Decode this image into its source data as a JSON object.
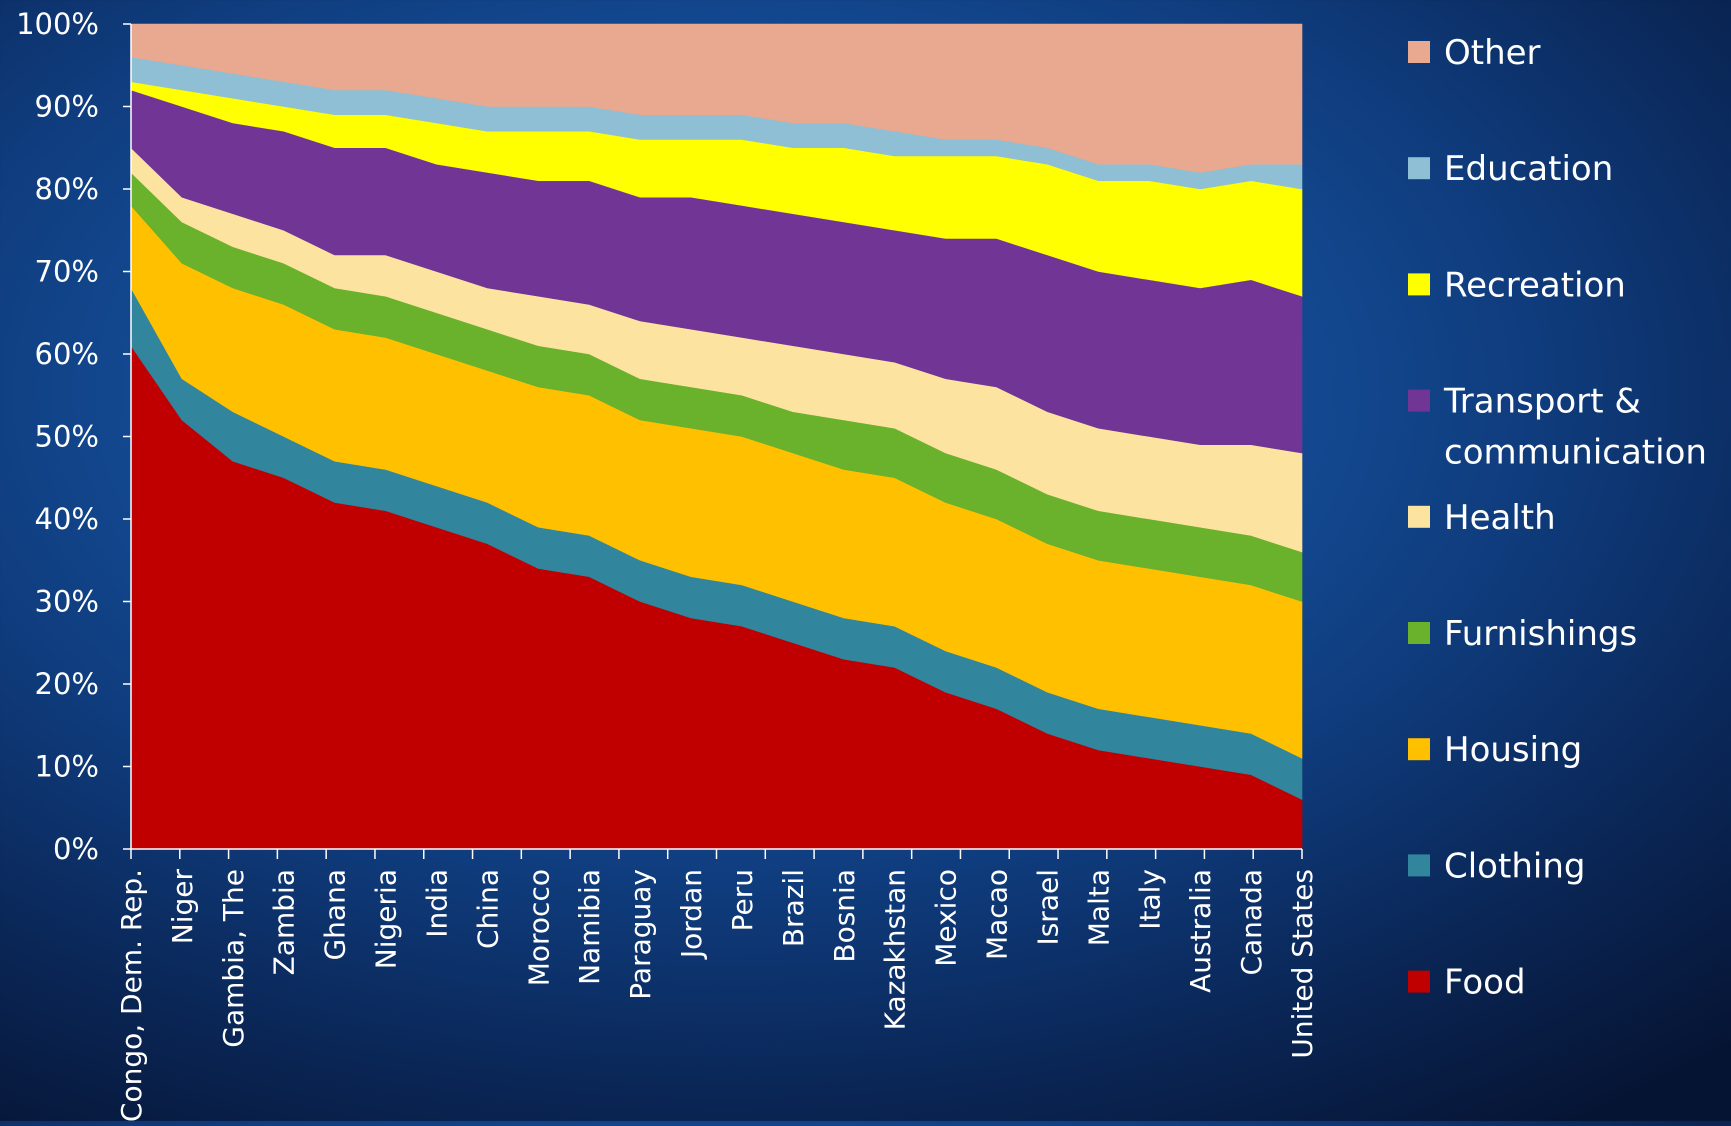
{
  "chart_data": {
    "type": "area",
    "stacked": true,
    "percent": true,
    "title": "",
    "xlabel": "",
    "ylabel": "",
    "ylim": [
      0,
      100
    ],
    "yticks": [
      "0%",
      "10%",
      "20%",
      "30%",
      "40%",
      "50%",
      "60%",
      "70%",
      "80%",
      "90%",
      "100%"
    ],
    "categories": [
      "Congo, Dem. Rep.",
      "Niger",
      "Gambia, The",
      "Zambia",
      "Ghana",
      "Nigeria",
      "India",
      "China",
      "Morocco",
      "Namibia",
      "Paraguay",
      "Jordan",
      "Peru",
      "Brazil",
      "Bosnia",
      "Kazakhstan",
      "Mexico",
      "Macao",
      "Israel",
      "Malta",
      "Italy",
      "Australia",
      "Canada",
      "United States"
    ],
    "series": [
      {
        "name": "Food",
        "color": "#C00000",
        "values": [
          61,
          52,
          47,
          45,
          42,
          41,
          39,
          37,
          34,
          33,
          30,
          28,
          27,
          25,
          23,
          22,
          19,
          17,
          14,
          12,
          11,
          10,
          9,
          6
        ]
      },
      {
        "name": "Clothing",
        "color": "#31859C",
        "values": [
          7,
          5,
          6,
          5,
          5,
          5,
          5,
          5,
          5,
          5,
          5,
          5,
          5,
          5,
          5,
          5,
          5,
          5,
          5,
          5,
          5,
          5,
          5,
          5
        ]
      },
      {
        "name": "Housing",
        "color": "#FFC000",
        "values": [
          10,
          14,
          15,
          16,
          16,
          16,
          16,
          16,
          17,
          17,
          17,
          18,
          18,
          18,
          18,
          18,
          18,
          18,
          18,
          18,
          18,
          18,
          18,
          19
        ]
      },
      {
        "name": "Furnishings",
        "color": "#6AB12C",
        "values": [
          4,
          5,
          5,
          5,
          5,
          5,
          5,
          5,
          5,
          5,
          5,
          5,
          5,
          5,
          6,
          6,
          6,
          6,
          6,
          6,
          6,
          6,
          6,
          6
        ]
      },
      {
        "name": "Health",
        "color": "#FDE3A0",
        "values": [
          3,
          3,
          4,
          4,
          4,
          5,
          5,
          5,
          6,
          6,
          7,
          7,
          7,
          8,
          8,
          8,
          9,
          10,
          10,
          10,
          10,
          10,
          11,
          12
        ]
      },
      {
        "name": "Transport & communication",
        "color": "#703595",
        "values": [
          7,
          11,
          11,
          12,
          13,
          13,
          13,
          14,
          14,
          15,
          15,
          16,
          16,
          16,
          16,
          16,
          17,
          18,
          19,
          19,
          19,
          19,
          20,
          19
        ]
      },
      {
        "name": "Recreation",
        "color": "#FFFF00",
        "values": [
          1,
          2,
          3,
          3,
          4,
          4,
          5,
          5,
          6,
          6,
          7,
          7,
          8,
          8,
          9,
          9,
          10,
          10,
          11,
          11,
          12,
          12,
          12,
          13
        ]
      },
      {
        "name": "Education",
        "color": "#8EBFD4",
        "values": [
          3,
          3,
          3,
          3,
          3,
          3,
          3,
          3,
          3,
          3,
          3,
          3,
          3,
          3,
          3,
          3,
          2,
          2,
          2,
          2,
          2,
          2,
          2,
          3
        ]
      },
      {
        "name": "Other",
        "color": "#E8A990",
        "values": [
          4,
          5,
          6,
          7,
          8,
          8,
          9,
          10,
          10,
          10,
          11,
          11,
          11,
          12,
          12,
          13,
          14,
          14,
          15,
          17,
          17,
          18,
          17,
          17
        ]
      }
    ],
    "legend": {
      "position": "right",
      "order": [
        "Other",
        "Education",
        "Recreation",
        "Transport & communication",
        "Health",
        "Furnishings",
        "Housing",
        "Clothing",
        "Food"
      ],
      "lines": {
        "Transport & communication": [
          "Transport &",
          "communication"
        ]
      }
    },
    "style": {
      "axis_color": "#FFFFFF",
      "text_color": "#FFFFFF"
    }
  }
}
